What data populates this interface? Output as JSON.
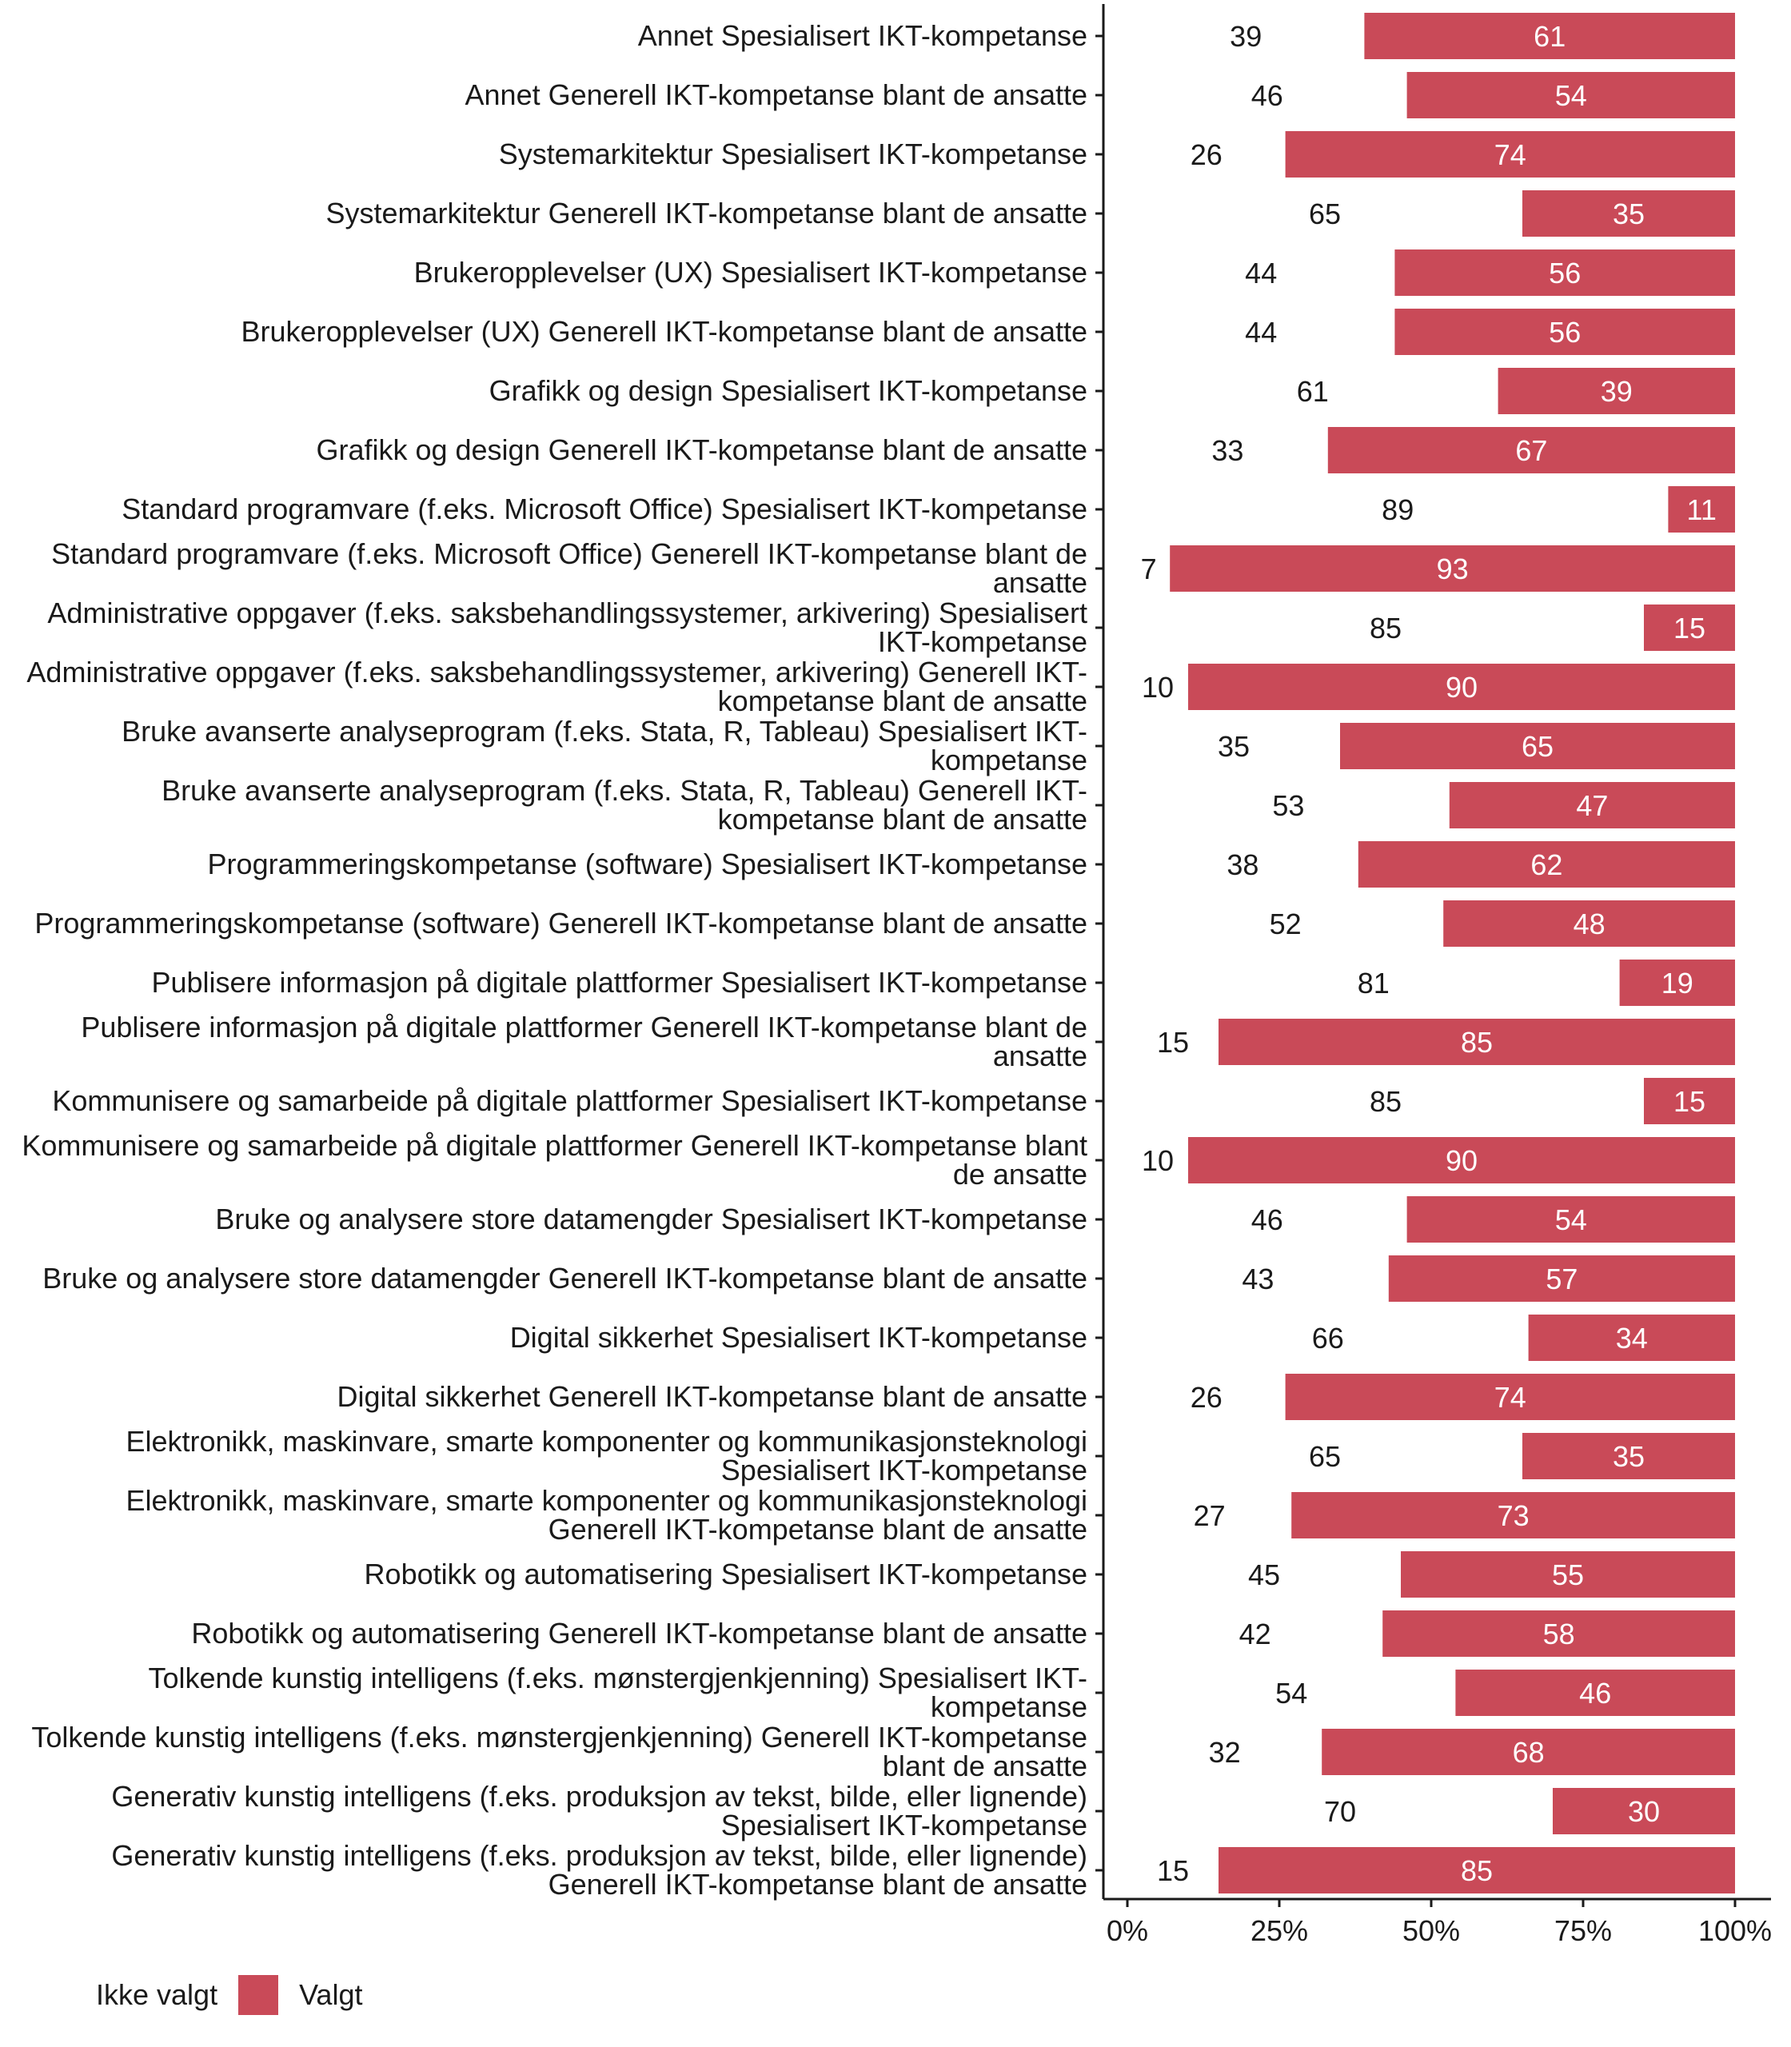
{
  "chart_data": {
    "type": "bar",
    "stacked": true,
    "orientation": "horizontal",
    "xlim": [
      0,
      100
    ],
    "x_ticks": [
      "0%",
      "25%",
      "50%",
      "75%",
      "100%"
    ],
    "grid": false,
    "legend_position": "bottom-left",
    "colors": {
      "Valgt": "#C94A58",
      "Ikke valgt": "#FFFFFF"
    },
    "categories": [
      "Annet Spesialisert IKT-kompetanse",
      "Annet Generell IKT-kompetanse blant de ansatte",
      "Systemarkitektur Spesialisert IKT-kompetanse",
      "Systemarkitektur Generell IKT-kompetanse blant de ansatte",
      "Brukeropplevelser (UX) Spesialisert IKT-kompetanse",
      "Brukeropplevelser (UX) Generell IKT-kompetanse blant de ansatte",
      "Grafikk og design Spesialisert IKT-kompetanse",
      "Grafikk og design Generell IKT-kompetanse blant de ansatte",
      "Standard programvare (f.eks. Microsoft Office) Spesialisert IKT-kompetanse",
      "Standard programvare (f.eks. Microsoft Office) Generell IKT-kompetanse blant de ansatte",
      "Administrative oppgaver (f.eks. saksbehandlingssystemer, arkivering) Spesialisert IKT-kompetanse",
      "Administrative oppgaver (f.eks. saksbehandlingssystemer, arkivering) Generell IKT-kompetanse blant de ansatte",
      "Bruke avanserte analyseprogram (f.eks. Stata, R, Tableau) Spesialisert IKT-kompetanse",
      "Bruke avanserte analyseprogram (f.eks. Stata, R, Tableau) Generell IKT-kompetanse blant de ansatte",
      "Programmeringskompetanse (software) Spesialisert IKT-kompetanse",
      "Programmeringskompetanse (software) Generell IKT-kompetanse blant de ansatte",
      "Publisere informasjon på digitale plattformer Spesialisert IKT-kompetanse",
      "Publisere informasjon på digitale plattformer Generell IKT-kompetanse blant de ansatte",
      "Kommunisere og samarbeide på digitale plattformer Spesialisert IKT-kompetanse",
      "Kommunisere og samarbeide på digitale plattformer Generell IKT-kompetanse blant de ansatte",
      "Bruke og analysere store datamengder Spesialisert IKT-kompetanse",
      "Bruke og analysere store datamengder Generell IKT-kompetanse blant de ansatte",
      "Digital sikkerhet Spesialisert IKT-kompetanse",
      "Digital sikkerhet Generell IKT-kompetanse blant de ansatte",
      "Elektronikk, maskinvare, smarte komponenter og kommunikasjonsteknologi Spesialisert IKT-kompetanse",
      "Elektronikk, maskinvare, smarte komponenter og kommunikasjonsteknologi Generell IKT-kompetanse blant de ansatte",
      "Robotikk og automatisering Spesialisert IKT-kompetanse",
      "Robotikk og automatisering Generell IKT-kompetanse blant de ansatte",
      "Tolkende kunstig intelligens (f.eks. mønstergjenkjenning) Spesialisert IKT-kompetanse",
      "Tolkende kunstig intelligens (f.eks. mønstergjenkjenning) Generell IKT-kompetanse blant de ansatte",
      "Generativ kunstig intelligens (f.eks. produksjon av tekst, bilde, eller lignende) Spesialisert IKT-kompetanse",
      "Generativ kunstig intelligens (f.eks. produksjon av tekst, bilde, eller lignende) Generell IKT-kompetanse blant de ansatte"
    ],
    "series": [
      {
        "name": "Ikke valgt",
        "values": [
          39,
          46,
          26,
          65,
          44,
          44,
          61,
          33,
          89,
          7,
          85,
          10,
          35,
          53,
          38,
          52,
          81,
          15,
          85,
          10,
          46,
          43,
          66,
          26,
          65,
          27,
          45,
          42,
          54,
          32,
          70,
          15
        ]
      },
      {
        "name": "Valgt",
        "values": [
          61,
          54,
          74,
          35,
          56,
          56,
          39,
          67,
          11,
          93,
          15,
          90,
          65,
          47,
          62,
          48,
          19,
          85,
          15,
          90,
          54,
          57,
          34,
          74,
          35,
          73,
          55,
          58,
          46,
          68,
          30,
          85
        ]
      }
    ]
  }
}
